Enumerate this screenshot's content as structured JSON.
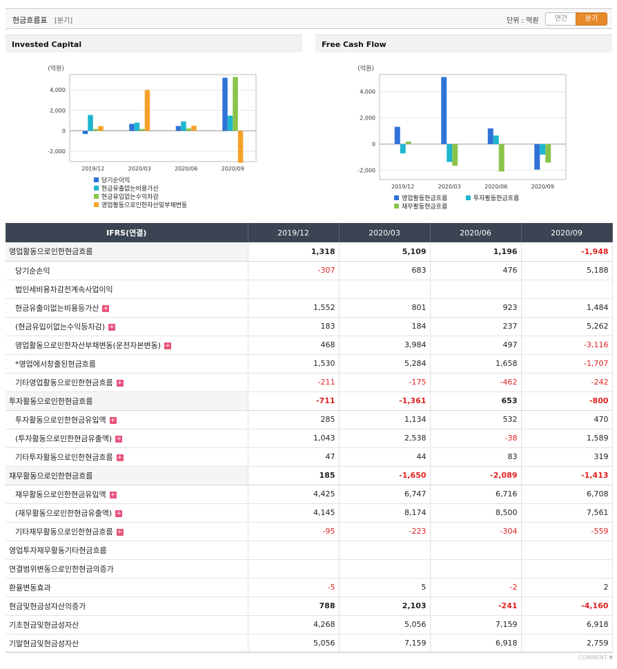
{
  "header": {
    "title": "현금흐름표",
    "subtitle": "[분기]",
    "unit_label": "단위 : 억원",
    "toggle_annual": "연간",
    "toggle_quarter": "분기"
  },
  "chart_data": [
    {
      "type": "bar",
      "title": "Invested Capital",
      "ylabel": "(억원)",
      "categories": [
        "2019/12",
        "2020/03",
        "2020/06",
        "2020/09"
      ],
      "ylim": [
        -3000,
        5500
      ],
      "yticks": [
        4000,
        2000,
        0,
        -2000
      ],
      "ytick_labels": [
        "4,000",
        "2,000",
        "0",
        "-2,000"
      ],
      "series": [
        {
          "name": "당기순이익",
          "color": "#2f73d8",
          "values": [
            -307,
            683,
            476,
            5188
          ]
        },
        {
          "name": "현금유출없는비용가산",
          "color": "#1fb6cf",
          "values": [
            1552,
            801,
            923,
            1484
          ]
        },
        {
          "name": "현금유입없는수익차감",
          "color": "#8bc34a",
          "values": [
            183,
            184,
            237,
            5262
          ]
        },
        {
          "name": "영업활동으로인한자산및부채변동",
          "color": "#f7a12b",
          "values": [
            468,
            3984,
            497,
            -3116
          ]
        }
      ]
    },
    {
      "type": "bar",
      "title": "Free Cash Flow",
      "ylabel": "(억원)",
      "categories": [
        "2019/12",
        "2020/03",
        "2020/06",
        "2020/09"
      ],
      "ylim": [
        -2700,
        5300
      ],
      "yticks": [
        4000,
        2000,
        0,
        -2000
      ],
      "ytick_labels": [
        "4,000",
        "2,000",
        "0",
        "-2,000"
      ],
      "series": [
        {
          "name": "영업활동현금흐름",
          "color": "#2f73d8",
          "values": [
            1318,
            5109,
            1196,
            -1948
          ]
        },
        {
          "name": "투자활동현금흐름",
          "color": "#1fb6cf",
          "values": [
            -711,
            -1361,
            653,
            -800
          ]
        },
        {
          "name": "재무활동현금흐름",
          "color": "#8bc34a",
          "values": [
            185,
            -1650,
            -2089,
            -1413
          ]
        }
      ]
    }
  ],
  "table": {
    "header": [
      "IFRS(연결)",
      "2019/12",
      "2020/03",
      "2020/06",
      "2020/09"
    ],
    "rows": [
      {
        "label": "영업활동으로인한현금흐름",
        "major": true,
        "values": [
          "1,318",
          "5,109",
          "1,196",
          "-1,948"
        ]
      },
      {
        "label": "당기순손익",
        "values": [
          "-307",
          "683",
          "476",
          "5,188"
        ]
      },
      {
        "label": "법인세비용차감전계속사업이익",
        "values": [
          "",
          "",
          "",
          ""
        ]
      },
      {
        "label": "현금유출이없는비용등가산",
        "plus": true,
        "values": [
          "1,552",
          "801",
          "923",
          "1,484"
        ]
      },
      {
        "label": "(현금유입이없는수익등차감)",
        "plus": true,
        "values": [
          "183",
          "184",
          "237",
          "5,262"
        ]
      },
      {
        "label": "영업활동으로인한자산부채변동(운전자본변동)",
        "plus": true,
        "values": [
          "468",
          "3,984",
          "497",
          "-3,116"
        ]
      },
      {
        "label": "*영업에서창출된현금흐름",
        "values": [
          "1,530",
          "5,284",
          "1,658",
          "-1,707"
        ]
      },
      {
        "label": "기타영업활동으로인한현금흐름",
        "plus": true,
        "values": [
          "-211",
          "-175",
          "-462",
          "-242"
        ]
      },
      {
        "label": "투자활동으로인한현금흐름",
        "major": true,
        "values": [
          "-711",
          "-1,361",
          "653",
          "-800"
        ]
      },
      {
        "label": "투자활동으로인한현금유입액",
        "plus": true,
        "values": [
          "285",
          "1,134",
          "532",
          "470"
        ]
      },
      {
        "label": "(투자활동으로인한현금유출액)",
        "plus": true,
        "values": [
          "1,043",
          "2,538",
          "-38",
          "1,589"
        ]
      },
      {
        "label": "기타투자활동으로인한현금흐름",
        "plus": true,
        "values": [
          "47",
          "44",
          "83",
          "319"
        ]
      },
      {
        "label": "재무활동으로인한현금흐름",
        "major": true,
        "values": [
          "185",
          "-1,650",
          "-2,089",
          "-1,413"
        ]
      },
      {
        "label": "재무활동으로인한현금유입액",
        "plus": true,
        "values": [
          "4,425",
          "6,747",
          "6,716",
          "6,708"
        ]
      },
      {
        "label": "(재무활동으로인한현금유출액)",
        "plus": true,
        "values": [
          "4,145",
          "8,174",
          "8,500",
          "7,561"
        ]
      },
      {
        "label": "기타재무활동으로인한현금흐름",
        "plus": true,
        "values": [
          "-95",
          "-223",
          "-304",
          "-559"
        ]
      },
      {
        "label": "영업투자재무활동기타현금흐름",
        "top": true,
        "values": [
          "",
          "",
          "",
          ""
        ]
      },
      {
        "label": "연결범위변동으로인한현금의증가",
        "top": true,
        "values": [
          "",
          "",
          "",
          ""
        ]
      },
      {
        "label": "환율변동효과",
        "top": true,
        "values": [
          "-5",
          "5",
          "-2",
          "2"
        ]
      },
      {
        "label": "현금및현금성자산의증가",
        "top": true,
        "bold": true,
        "values": [
          "788",
          "2,103",
          "-241",
          "-4,160"
        ]
      },
      {
        "label": "기초현금및현금성자산",
        "top": true,
        "values": [
          "4,268",
          "5,056",
          "7,159",
          "6,918"
        ]
      },
      {
        "label": "기말현금및현금성자산",
        "top": true,
        "values": [
          "5,056",
          "7,159",
          "6,918",
          "2,759"
        ]
      }
    ]
  },
  "footer": {
    "comment": "COMMENT ▼"
  }
}
